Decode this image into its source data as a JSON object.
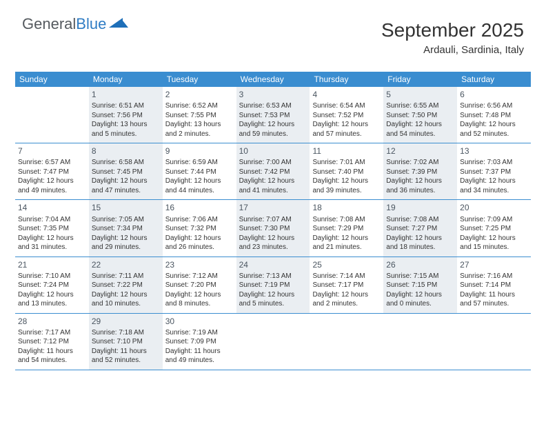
{
  "logo": {
    "text_gray": "General",
    "text_blue": "Blue"
  },
  "header": {
    "title": "September 2025",
    "location": "Ardauli, Sardinia, Italy"
  },
  "colors": {
    "header_bar": "#3a8dd0",
    "shaded_cell": "#eaeef2",
    "logo_blue": "#2f7cc4",
    "text": "#333333"
  },
  "days_of_week": [
    "Sunday",
    "Monday",
    "Tuesday",
    "Wednesday",
    "Thursday",
    "Friday",
    "Saturday"
  ],
  "weeks": [
    [
      {
        "num": "",
        "shaded": false,
        "lines": []
      },
      {
        "num": "1",
        "shaded": true,
        "lines": [
          "Sunrise: 6:51 AM",
          "Sunset: 7:56 PM",
          "Daylight: 13 hours and 5 minutes."
        ]
      },
      {
        "num": "2",
        "shaded": false,
        "lines": [
          "Sunrise: 6:52 AM",
          "Sunset: 7:55 PM",
          "Daylight: 13 hours and 2 minutes."
        ]
      },
      {
        "num": "3",
        "shaded": true,
        "lines": [
          "Sunrise: 6:53 AM",
          "Sunset: 7:53 PM",
          "Daylight: 12 hours and 59 minutes."
        ]
      },
      {
        "num": "4",
        "shaded": false,
        "lines": [
          "Sunrise: 6:54 AM",
          "Sunset: 7:52 PM",
          "Daylight: 12 hours and 57 minutes."
        ]
      },
      {
        "num": "5",
        "shaded": true,
        "lines": [
          "Sunrise: 6:55 AM",
          "Sunset: 7:50 PM",
          "Daylight: 12 hours and 54 minutes."
        ]
      },
      {
        "num": "6",
        "shaded": false,
        "lines": [
          "Sunrise: 6:56 AM",
          "Sunset: 7:48 PM",
          "Daylight: 12 hours and 52 minutes."
        ]
      }
    ],
    [
      {
        "num": "7",
        "shaded": false,
        "lines": [
          "Sunrise: 6:57 AM",
          "Sunset: 7:47 PM",
          "Daylight: 12 hours and 49 minutes."
        ]
      },
      {
        "num": "8",
        "shaded": true,
        "lines": [
          "Sunrise: 6:58 AM",
          "Sunset: 7:45 PM",
          "Daylight: 12 hours and 47 minutes."
        ]
      },
      {
        "num": "9",
        "shaded": false,
        "lines": [
          "Sunrise: 6:59 AM",
          "Sunset: 7:44 PM",
          "Daylight: 12 hours and 44 minutes."
        ]
      },
      {
        "num": "10",
        "shaded": true,
        "lines": [
          "Sunrise: 7:00 AM",
          "Sunset: 7:42 PM",
          "Daylight: 12 hours and 41 minutes."
        ]
      },
      {
        "num": "11",
        "shaded": false,
        "lines": [
          "Sunrise: 7:01 AM",
          "Sunset: 7:40 PM",
          "Daylight: 12 hours and 39 minutes."
        ]
      },
      {
        "num": "12",
        "shaded": true,
        "lines": [
          "Sunrise: 7:02 AM",
          "Sunset: 7:39 PM",
          "Daylight: 12 hours and 36 minutes."
        ]
      },
      {
        "num": "13",
        "shaded": false,
        "lines": [
          "Sunrise: 7:03 AM",
          "Sunset: 7:37 PM",
          "Daylight: 12 hours and 34 minutes."
        ]
      }
    ],
    [
      {
        "num": "14",
        "shaded": false,
        "lines": [
          "Sunrise: 7:04 AM",
          "Sunset: 7:35 PM",
          "Daylight: 12 hours and 31 minutes."
        ]
      },
      {
        "num": "15",
        "shaded": true,
        "lines": [
          "Sunrise: 7:05 AM",
          "Sunset: 7:34 PM",
          "Daylight: 12 hours and 29 minutes."
        ]
      },
      {
        "num": "16",
        "shaded": false,
        "lines": [
          "Sunrise: 7:06 AM",
          "Sunset: 7:32 PM",
          "Daylight: 12 hours and 26 minutes."
        ]
      },
      {
        "num": "17",
        "shaded": true,
        "lines": [
          "Sunrise: 7:07 AM",
          "Sunset: 7:30 PM",
          "Daylight: 12 hours and 23 minutes."
        ]
      },
      {
        "num": "18",
        "shaded": false,
        "lines": [
          "Sunrise: 7:08 AM",
          "Sunset: 7:29 PM",
          "Daylight: 12 hours and 21 minutes."
        ]
      },
      {
        "num": "19",
        "shaded": true,
        "lines": [
          "Sunrise: 7:08 AM",
          "Sunset: 7:27 PM",
          "Daylight: 12 hours and 18 minutes."
        ]
      },
      {
        "num": "20",
        "shaded": false,
        "lines": [
          "Sunrise: 7:09 AM",
          "Sunset: 7:25 PM",
          "Daylight: 12 hours and 15 minutes."
        ]
      }
    ],
    [
      {
        "num": "21",
        "shaded": false,
        "lines": [
          "Sunrise: 7:10 AM",
          "Sunset: 7:24 PM",
          "Daylight: 12 hours and 13 minutes."
        ]
      },
      {
        "num": "22",
        "shaded": true,
        "lines": [
          "Sunrise: 7:11 AM",
          "Sunset: 7:22 PM",
          "Daylight: 12 hours and 10 minutes."
        ]
      },
      {
        "num": "23",
        "shaded": false,
        "lines": [
          "Sunrise: 7:12 AM",
          "Sunset: 7:20 PM",
          "Daylight: 12 hours and 8 minutes."
        ]
      },
      {
        "num": "24",
        "shaded": true,
        "lines": [
          "Sunrise: 7:13 AM",
          "Sunset: 7:19 PM",
          "Daylight: 12 hours and 5 minutes."
        ]
      },
      {
        "num": "25",
        "shaded": false,
        "lines": [
          "Sunrise: 7:14 AM",
          "Sunset: 7:17 PM",
          "Daylight: 12 hours and 2 minutes."
        ]
      },
      {
        "num": "26",
        "shaded": true,
        "lines": [
          "Sunrise: 7:15 AM",
          "Sunset: 7:15 PM",
          "Daylight: 12 hours and 0 minutes."
        ]
      },
      {
        "num": "27",
        "shaded": false,
        "lines": [
          "Sunrise: 7:16 AM",
          "Sunset: 7:14 PM",
          "Daylight: 11 hours and 57 minutes."
        ]
      }
    ],
    [
      {
        "num": "28",
        "shaded": false,
        "lines": [
          "Sunrise: 7:17 AM",
          "Sunset: 7:12 PM",
          "Daylight: 11 hours and 54 minutes."
        ]
      },
      {
        "num": "29",
        "shaded": true,
        "lines": [
          "Sunrise: 7:18 AM",
          "Sunset: 7:10 PM",
          "Daylight: 11 hours and 52 minutes."
        ]
      },
      {
        "num": "30",
        "shaded": false,
        "lines": [
          "Sunrise: 7:19 AM",
          "Sunset: 7:09 PM",
          "Daylight: 11 hours and 49 minutes."
        ]
      },
      {
        "num": "",
        "shaded": false,
        "lines": []
      },
      {
        "num": "",
        "shaded": false,
        "lines": []
      },
      {
        "num": "",
        "shaded": false,
        "lines": []
      },
      {
        "num": "",
        "shaded": false,
        "lines": []
      }
    ]
  ]
}
